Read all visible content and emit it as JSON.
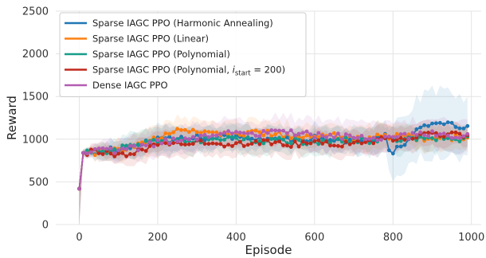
{
  "chart_data": {
    "type": "line",
    "title": "",
    "xlabel": "Episode",
    "ylabel": "Reward",
    "xlim": [
      -60,
      1025
    ],
    "ylim": [
      0,
      2500
    ],
    "x_ticks": [
      0,
      200,
      400,
      600,
      800,
      1000
    ],
    "y_ticks": [
      0,
      500,
      1000,
      1500,
      2000,
      2500
    ],
    "grid": true,
    "legend_position": "top-left",
    "series": [
      {
        "name": "Sparse IAGC PPO (Harmonic Annealing)",
        "color": "#1f77b4",
        "x": [
          0,
          10,
          50,
          100,
          150,
          200,
          250,
          300,
          350,
          400,
          450,
          500,
          550,
          600,
          650,
          700,
          750,
          780,
          790,
          800,
          820,
          850,
          880,
          900,
          920,
          950,
          970,
          990
        ],
        "y": [
          420,
          840,
          860,
          880,
          940,
          990,
          1000,
          1020,
          1010,
          1030,
          1000,
          1020,
          1000,
          1010,
          1000,
          980,
          1010,
          1030,
          880,
          860,
          920,
          1060,
          1150,
          1190,
          1210,
          1180,
          1100,
          1120
        ],
        "band": [
          30,
          40,
          80,
          120,
          140,
          150,
          150,
          140,
          140,
          150,
          140,
          140,
          140,
          140,
          140,
          140,
          150,
          160,
          220,
          260,
          300,
          330,
          360,
          380,
          400,
          380,
          340,
          300
        ]
      },
      {
        "name": "Sparse IAGC PPO (Linear)",
        "color": "#ff7f0e",
        "x": [
          0,
          10,
          50,
          100,
          150,
          200,
          250,
          300,
          350,
          400,
          450,
          500,
          550,
          600,
          650,
          700,
          750,
          800,
          850,
          900,
          950,
          990
        ],
        "y": [
          420,
          840,
          850,
          870,
          930,
          1020,
          1090,
          1100,
          1080,
          1060,
          1080,
          1060,
          1030,
          1050,
          1040,
          1010,
          1020,
          1030,
          1020,
          1000,
          1020,
          1020
        ],
        "band": [
          30,
          40,
          80,
          120,
          140,
          150,
          140,
          140,
          140,
          140,
          140,
          140,
          140,
          140,
          140,
          140,
          140,
          140,
          140,
          140,
          140,
          140
        ]
      },
      {
        "name": "Sparse IAGC PPO (Polynomial)",
        "color": "#179c8a",
        "x": [
          0,
          10,
          50,
          100,
          150,
          200,
          250,
          300,
          350,
          400,
          450,
          500,
          550,
          600,
          650,
          700,
          750,
          800,
          850,
          900,
          950,
          990
        ],
        "y": [
          420,
          840,
          850,
          880,
          960,
          970,
          1000,
          990,
          1010,
          1000,
          980,
          990,
          980,
          970,
          990,
          980,
          980,
          1000,
          1010,
          1000,
          1010,
          1000
        ],
        "band": [
          30,
          40,
          80,
          130,
          150,
          160,
          150,
          150,
          150,
          150,
          150,
          150,
          150,
          150,
          150,
          150,
          150,
          150,
          150,
          150,
          150,
          150
        ]
      },
      {
        "name": "Sparse IAGC PPO (Polynomial, i_start = 200)",
        "color": "#c0281b",
        "x": [
          0,
          10,
          50,
          100,
          150,
          200,
          250,
          300,
          350,
          400,
          450,
          500,
          550,
          600,
          650,
          700,
          750,
          800,
          850,
          900,
          950,
          990
        ],
        "y": [
          420,
          840,
          850,
          800,
          870,
          920,
          940,
          960,
          950,
          940,
          960,
          950,
          940,
          960,
          930,
          950,
          980,
          1010,
          1020,
          1050,
          1060,
          1050
        ],
        "band": [
          30,
          40,
          80,
          120,
          140,
          150,
          140,
          140,
          140,
          140,
          140,
          140,
          140,
          140,
          140,
          140,
          140,
          140,
          140,
          140,
          140,
          140
        ]
      },
      {
        "name": "Dense IAGC PPO",
        "color": "#b45cb2",
        "x": [
          0,
          10,
          50,
          100,
          150,
          200,
          250,
          300,
          350,
          400,
          450,
          500,
          550,
          600,
          650,
          700,
          750,
          800,
          850,
          900,
          950,
          990
        ],
        "y": [
          420,
          840,
          860,
          870,
          900,
          960,
          990,
          1020,
          1050,
          1070,
          1060,
          1080,
          1070,
          1050,
          1040,
          1030,
          1020,
          1030,
          1040,
          1060,
          1040,
          1030
        ],
        "band": [
          30,
          40,
          80,
          130,
          150,
          170,
          170,
          170,
          170,
          170,
          170,
          170,
          170,
          170,
          170,
          170,
          170,
          170,
          170,
          170,
          170,
          170
        ]
      }
    ]
  }
}
